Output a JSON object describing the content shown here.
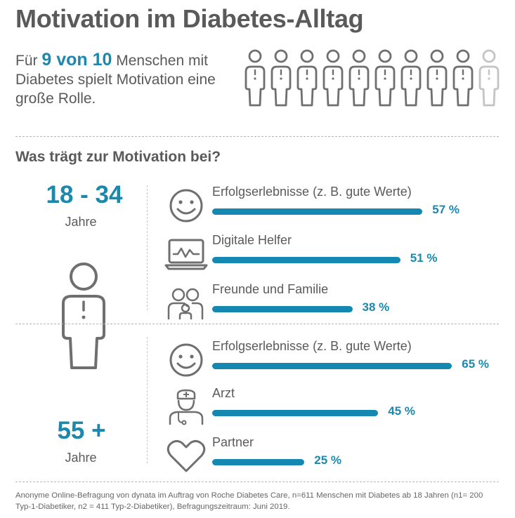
{
  "title": "Motivation im Diabetes-Alltag",
  "intro": {
    "pre": "Für ",
    "highlight": "9 von 10",
    "post": " Menschen mit Diabetes spielt Motivation eine große Rolle.",
    "people_total": 10,
    "people_highlighted": 9
  },
  "subtitle": "Was trägt zur Motivation bei?",
  "chart_data": [
    {
      "type": "bar",
      "group": "18 - 34",
      "unit_label": "Jahre",
      "categories": [
        "Erfolgserlebnisse (z. B. gute Werte)",
        "Digitale Helfer",
        "Freunde und Familie"
      ],
      "values": [
        57,
        51,
        38
      ],
      "value_labels": [
        "57 %",
        "51 %",
        "38 %"
      ],
      "icons": [
        "smiley-icon",
        "laptop-icon",
        "family-icon"
      ],
      "ylim": [
        0,
        100
      ]
    },
    {
      "type": "bar",
      "group": "55 +",
      "unit_label": "Jahre",
      "categories": [
        "Erfolgserlebnisse (z. B. gute Werte)",
        "Arzt",
        "Partner"
      ],
      "values": [
        65,
        45,
        25
      ],
      "value_labels": [
        "65 %",
        "45 %",
        "25 %"
      ],
      "icons": [
        "smiley-icon",
        "doctor-icon",
        "heart-icon"
      ],
      "ylim": [
        0,
        100
      ]
    }
  ],
  "footnote": "Anonyme Online-Befragung von dynata im Auftrag von Roche Diabetes Care, n=611 Menschen mit Diabetes ab 18 Jahren (n1= 200 Typ-1-Diabetiker, n2 = 411 Typ-2-Diabetiker), Befragungszeitraum: Juni 2019.",
  "colors": {
    "accent": "#1d88ad",
    "bar": "#1488b1",
    "text": "#5a5a5a",
    "person": "#6f6f6f",
    "person_faded": "#c4c4c4"
  }
}
